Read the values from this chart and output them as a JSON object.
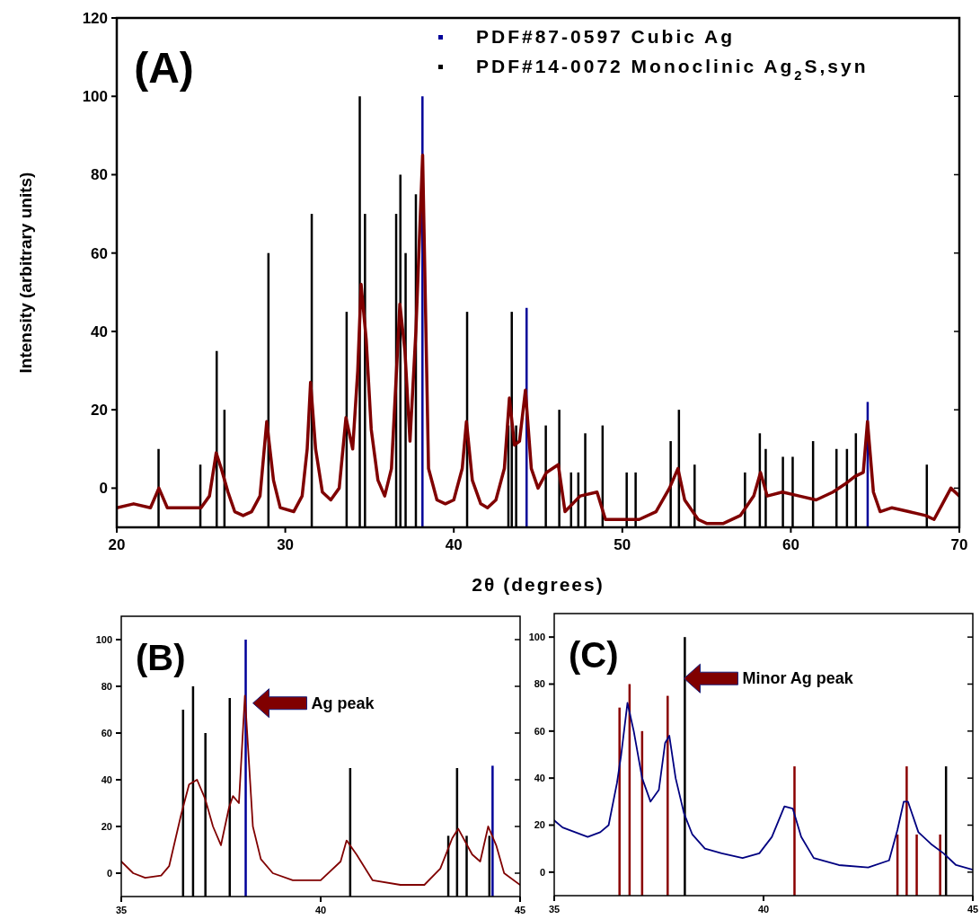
{
  "chart_data": [
    {
      "type": "line",
      "xlabel": "2θ (degrees)",
      "ylabel": "Intensity (arbitrary units)",
      "xlim": [
        20,
        70
      ],
      "xticks": [
        20,
        30,
        40,
        50,
        60,
        70
      ],
      "ylim": [
        -10,
        120
      ],
      "yticks": [
        0,
        20,
        40,
        60,
        80,
        100,
        120
      ],
      "legend": "top right",
      "annotations": [
        "(A)"
      ],
      "series": [
        {
          "color": "#800000",
          "x": [
            20,
            21,
            22,
            22.5,
            23,
            24,
            25,
            25.5,
            25.9,
            26.2,
            26.6,
            27,
            27.5,
            28,
            28.5,
            28.9,
            29.3,
            29.7,
            30.5,
            31,
            31.3,
            31.5,
            31.8,
            32.2,
            32.7,
            33.2,
            33.6,
            34,
            34.3,
            34.5,
            34.8,
            35.1,
            35.5,
            35.9,
            36.3,
            36.6,
            36.8,
            37.1,
            37.4,
            37.75,
            38.15,
            38.5,
            39,
            39.5,
            40,
            40.5,
            40.75,
            41.1,
            41.6,
            42,
            42.5,
            43,
            43.3,
            43.6,
            43.9,
            44.25,
            44.6,
            45,
            45.5,
            46.2,
            46.6,
            47.5,
            48.5,
            49,
            50,
            51,
            52,
            52.8,
            53.3,
            53.7,
            54.5,
            55,
            56,
            57,
            57.8,
            58.2,
            58.6,
            59.5,
            60.5,
            61.5,
            62.5,
            63.2,
            63.8,
            64.3,
            64.55,
            64.9,
            65.3,
            66,
            67,
            68,
            68.5,
            69,
            69.5,
            70
          ],
          "values": [
            -5,
            -4,
            -5,
            0,
            -5,
            -5,
            -5,
            -2,
            9,
            5,
            -1,
            -6,
            -7,
            -6,
            -2,
            17,
            2,
            -5,
            -6,
            -2,
            10,
            27,
            10,
            -1,
            -3,
            0,
            18,
            10,
            30,
            52,
            38,
            15,
            2,
            -2,
            5,
            30,
            47,
            35,
            12,
            40,
            85,
            5,
            -3,
            -4,
            -3,
            5,
            17,
            2,
            -4,
            -5,
            -3,
            5,
            23,
            11,
            12,
            25,
            5,
            0,
            4,
            6,
            -6,
            -2,
            -1,
            -8,
            -8,
            -8,
            -6,
            0,
            5,
            -3,
            -8,
            -9,
            -9,
            -7,
            -2,
            4,
            -2,
            -1,
            -2,
            -3,
            -1,
            1,
            3,
            4,
            17,
            -1,
            -6,
            -5,
            -6,
            -7,
            -8,
            -4,
            0,
            -2
          ]
        },
        {
          "type": "bar",
          "name": "PDF#87-0597 Cubic Ag",
          "color": "#000099",
          "x": [
            38.14,
            44.32,
            64.56
          ],
          "base": [
            -10,
            -10,
            -10
          ],
          "values": [
            110,
            56,
            32
          ]
        },
        {
          "type": "bar",
          "name": "PDF#14-0072 Monoclinic Ag$_{2}$S,syn",
          "color": "#000000",
          "x": [
            22.48,
            24.96,
            25.93,
            26.39,
            29.0,
            31.57,
            33.64,
            34.42,
            34.73,
            36.58,
            36.83,
            37.14,
            37.75,
            40.79,
            43.24,
            43.44,
            43.7,
            45.46,
            46.26,
            46.96,
            47.39,
            47.8,
            48.83,
            50.26,
            50.79,
            52.87,
            53.36,
            54.29,
            57.28,
            58.16,
            58.51,
            59.53,
            60.11,
            61.32,
            62.71,
            63.33,
            63.86,
            68.07
          ],
          "base": [
            -10,
            -10,
            -10,
            -10,
            -10,
            -10,
            -10,
            -10,
            -10,
            -10,
            -10,
            -10,
            -10,
            -10,
            -10,
            -10,
            -10,
            -10,
            -10,
            -10,
            -10,
            -10,
            -10,
            -10,
            -10,
            -10,
            -10,
            -10,
            -10,
            -10,
            -10,
            -10,
            -10,
            -10,
            -10,
            -10,
            -10,
            -10
          ],
          "values": [
            20,
            16,
            45,
            30,
            70,
            80,
            55,
            110,
            80,
            80,
            90,
            70,
            85,
            55,
            26,
            55,
            26,
            26,
            30,
            14,
            14,
            24,
            26,
            14,
            14,
            22,
            30,
            16,
            14,
            24,
            20,
            18,
            18,
            22,
            20,
            20,
            24,
            16
          ]
        }
      ]
    },
    {
      "type": "line",
      "xlim": [
        35,
        45
      ],
      "xticks": [
        35,
        40,
        45
      ],
      "ylim": [
        -10,
        110
      ],
      "yticks": [
        0,
        20,
        40,
        60,
        80,
        100
      ],
      "annotations": [
        "(B)",
        "Ag peak"
      ],
      "series": [
        {
          "color": "#800000",
          "x": [
            35,
            35.3,
            35.6,
            36,
            36.2,
            36.5,
            36.7,
            36.9,
            37.1,
            37.3,
            37.5,
            37.7,
            37.8,
            37.95,
            38.1,
            38.3,
            38.5,
            38.8,
            39.3,
            40,
            40.5,
            40.65,
            40.9,
            41.3,
            42,
            42.6,
            43,
            43.3,
            43.45,
            43.8,
            44,
            44.2,
            44.4,
            44.6,
            45
          ],
          "values": [
            5,
            0,
            -2,
            -1,
            3,
            25,
            38,
            40,
            32,
            20,
            12,
            28,
            33,
            30,
            76,
            20,
            6,
            0,
            -3,
            -3,
            5,
            14,
            8,
            -3,
            -5,
            -5,
            2,
            15,
            19,
            8,
            5,
            20,
            12,
            0,
            -5
          ]
        },
        {
          "type": "bar",
          "color": "#000099",
          "x": [
            38.12,
            44.31
          ],
          "base": [
            -10,
            -10
          ],
          "values": [
            110,
            56
          ]
        },
        {
          "type": "bar",
          "color": "#000000",
          "x": [
            36.55,
            36.8,
            37.11,
            37.72,
            40.74,
            43.2,
            43.42,
            43.66,
            44.23
          ],
          "base": [
            -10,
            -10,
            -10,
            -10,
            -10,
            -10,
            -10,
            -10,
            -10
          ],
          "values": [
            80,
            90,
            70,
            85,
            55,
            26,
            55,
            26,
            26
          ]
        }
      ]
    },
    {
      "type": "line",
      "xlim": [
        35,
        45
      ],
      "xticks": [
        35,
        40,
        45
      ],
      "ylim": [
        -10,
        110
      ],
      "yticks": [
        0,
        20,
        40,
        60,
        80,
        100
      ],
      "annotations": [
        "(C)",
        "Minor Ag peak"
      ],
      "series": [
        {
          "color": "#000080",
          "x": [
            35,
            35.2,
            35.5,
            35.8,
            36.1,
            36.3,
            36.5,
            36.6,
            36.75,
            36.9,
            37.1,
            37.3,
            37.5,
            37.65,
            37.75,
            37.9,
            38.1,
            38.3,
            38.6,
            39,
            39.5,
            39.9,
            40.2,
            40.5,
            40.7,
            40.9,
            41.2,
            41.8,
            42.5,
            43,
            43.2,
            43.35,
            43.45,
            43.7,
            44,
            44.3,
            44.6,
            45
          ],
          "values": [
            22,
            19,
            17,
            15,
            17,
            20,
            38,
            50,
            72,
            60,
            40,
            30,
            35,
            55,
            58,
            40,
            25,
            16,
            10,
            8,
            6,
            8,
            15,
            28,
            27,
            15,
            6,
            3,
            2,
            5,
            18,
            30,
            30,
            17,
            12,
            8,
            3,
            1
          ]
        },
        {
          "type": "bar",
          "color": "#000000",
          "x": [
            38.12,
            44.36
          ],
          "base": [
            -10,
            -10
          ],
          "values": [
            110,
            55
          ]
        },
        {
          "type": "bar",
          "color": "#8b0000",
          "x": [
            36.56,
            36.8,
            37.1,
            37.71,
            40.74,
            43.2,
            43.42,
            43.66,
            44.22
          ],
          "base": [
            -10,
            -10,
            -10,
            -10,
            -10,
            -10,
            -10,
            -10,
            -10
          ],
          "values": [
            80,
            90,
            70,
            85,
            55,
            26,
            55,
            26,
            26
          ]
        }
      ]
    }
  ]
}
